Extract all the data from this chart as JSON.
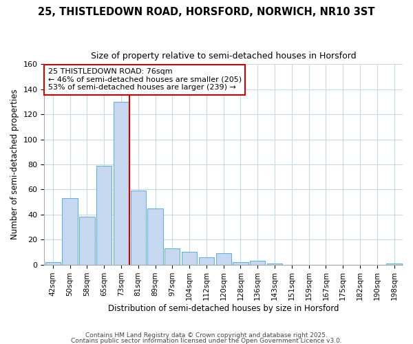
{
  "title1": "25, THISTLEDOWN ROAD, HORSFORD, NORWICH, NR10 3ST",
  "title2": "Size of property relative to semi-detached houses in Horsford",
  "xlabel": "Distribution of semi-detached houses by size in Horsford",
  "ylabel": "Number of semi-detached properties",
  "categories": [
    "42sqm",
    "50sqm",
    "58sqm",
    "65sqm",
    "73sqm",
    "81sqm",
    "89sqm",
    "97sqm",
    "104sqm",
    "112sqm",
    "120sqm",
    "128sqm",
    "136sqm",
    "143sqm",
    "151sqm",
    "159sqm",
    "167sqm",
    "175sqm",
    "182sqm",
    "190sqm",
    "198sqm"
  ],
  "values": [
    2,
    53,
    38,
    79,
    130,
    59,
    45,
    13,
    10,
    6,
    9,
    2,
    3,
    1,
    0,
    0,
    0,
    0,
    0,
    0,
    1
  ],
  "bar_color": "#c5d8f0",
  "bar_edge_color": "#6baed6",
  "vline_index": 4,
  "vline_color": "#cc0000",
  "annotation_title": "25 THISTLEDOWN ROAD: 76sqm",
  "annotation_line1": "← 46% of semi-detached houses are smaller (205)",
  "annotation_line2": "53% of semi-detached houses are larger (239) →",
  "annotation_box_color": "#ffffff",
  "annotation_box_edge": "#cc0000",
  "ylim": [
    0,
    160
  ],
  "yticks": [
    0,
    20,
    40,
    60,
    80,
    100,
    120,
    140,
    160
  ],
  "bg_color": "#ffffff",
  "plot_bg_color": "#ffffff",
  "grid_color": "#c8d8e8",
  "footer1": "Contains HM Land Registry data © Crown copyright and database right 2025.",
  "footer2": "Contains public sector information licensed under the Open Government Licence v3.0."
}
